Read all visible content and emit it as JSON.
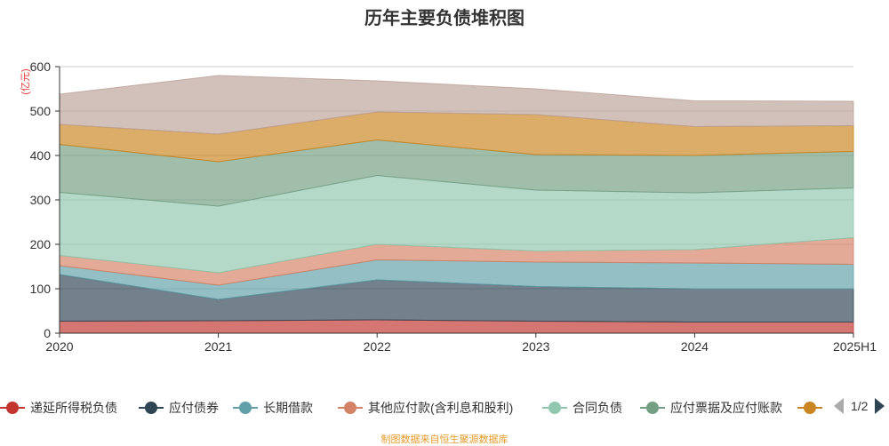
{
  "title": "历年主要负债堆积图",
  "source_note": "制图数据来自恒生聚源数据库",
  "pager": {
    "label": "1/2"
  },
  "chart_data": {
    "type": "area",
    "stacked": true,
    "title": "历年主要负债堆积图",
    "ylabel": "(亿元)",
    "x": [
      "2020",
      "2021",
      "2022",
      "2023",
      "2024",
      "2025H1"
    ],
    "ylim": [
      0,
      600
    ],
    "yticks": [
      0,
      100,
      200,
      300,
      400,
      500,
      600
    ],
    "grid": true,
    "legend_position": "bottom",
    "series": [
      {
        "name": "递延所得税负债",
        "color": "#c23531",
        "values": [
          27,
          28,
          30,
          27,
          25,
          25
        ]
      },
      {
        "name": "应付债券",
        "color": "#2f4554",
        "values": [
          105,
          48,
          90,
          78,
          75,
          75
        ]
      },
      {
        "name": "长期借款",
        "color": "#61a0a8",
        "values": [
          20,
          32,
          45,
          55,
          58,
          55
        ]
      },
      {
        "name": "其他应付款(含利息和股利)",
        "color": "#d48265",
        "values": [
          23,
          28,
          35,
          25,
          30,
          60
        ]
      },
      {
        "name": "合同负债",
        "color": "#91c7ae",
        "values": [
          142,
          150,
          155,
          137,
          128,
          112
        ]
      },
      {
        "name": "应付票据及应付账款",
        "color": "#749f83",
        "values": [
          108,
          100,
          80,
          80,
          84,
          82
        ]
      },
      {
        "name": "",
        "color": "#ca8622",
        "values": [
          45,
          62,
          63,
          90,
          65,
          58
        ]
      },
      {
        "name": "",
        "color": "#bda29a",
        "values": [
          68,
          132,
          70,
          58,
          58,
          55
        ]
      }
    ]
  }
}
